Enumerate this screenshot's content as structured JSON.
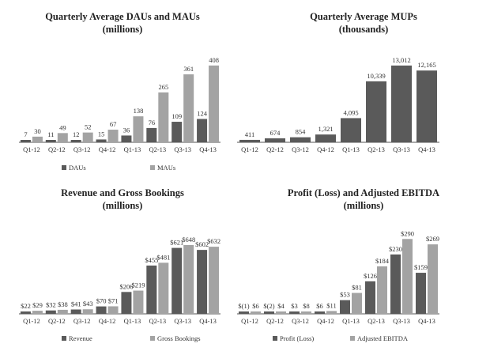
{
  "chart_data": [
    {
      "type": "bar",
      "title": "Quarterly Average DAUs and MAUs",
      "subtitle": "(millions)",
      "categories": [
        "Q1-12",
        "Q2-12",
        "Q3-12",
        "Q4-12",
        "Q1-13",
        "Q2-13",
        "Q3-13",
        "Q4-13"
      ],
      "series": [
        {
          "name": "DAUs",
          "values": [
            7,
            11,
            12,
            15,
            36,
            76,
            109,
            124
          ],
          "labels": [
            "7",
            "11",
            "12",
            "15",
            "36",
            "76",
            "109",
            "124"
          ],
          "color": "#5a5a5a"
        },
        {
          "name": "MAUs",
          "values": [
            30,
            49,
            52,
            67,
            138,
            265,
            361,
            408
          ],
          "labels": [
            "30",
            "49",
            "52",
            "67",
            "138",
            "265",
            "361",
            "408"
          ],
          "color": "#a3a3a3"
        }
      ],
      "ylim": [
        0,
        420
      ],
      "legend": "bottom"
    },
    {
      "type": "bar",
      "title": "Quarterly Average MUPs",
      "subtitle": "(thousands)",
      "categories": [
        "Q1-12",
        "Q2-12",
        "Q3-12",
        "Q4-12",
        "Q1-13",
        "Q2-13",
        "Q3-13",
        "Q4-13"
      ],
      "series": [
        {
          "name": "",
          "values": [
            411,
            674,
            854,
            1321,
            4095,
            10339,
            13012,
            12165
          ],
          "labels": [
            "411",
            "674",
            "854",
            "1,321",
            "4,095",
            "10,339",
            "13,012",
            "12,165"
          ],
          "color": "#5a5a5a"
        }
      ],
      "ylim": [
        0,
        13400
      ],
      "legend": "none"
    },
    {
      "type": "bar",
      "title": "Revenue and Gross Bookings",
      "subtitle": "(millions)",
      "categories": [
        "Q1-12",
        "Q2-12",
        "Q3-12",
        "Q4-12",
        "Q1-13",
        "Q2-13",
        "Q3-13",
        "Q4-13"
      ],
      "series": [
        {
          "name": "Revenue",
          "values": [
            22,
            32,
            41,
            70,
            206,
            455,
            621,
            602
          ],
          "labels": [
            "$22",
            "$32",
            "$41",
            "$70",
            "$206",
            "$455",
            "$621",
            "$602"
          ],
          "color": "#5a5a5a"
        },
        {
          "name": "Gross Bookings",
          "values": [
            29,
            38,
            43,
            71,
            219,
            481,
            648,
            632
          ],
          "labels": [
            "$29",
            "$38",
            "$43",
            "$71",
            "$219",
            "$481",
            "$648",
            "$632"
          ],
          "color": "#a3a3a3"
        }
      ],
      "ylim": [
        0,
        670
      ],
      "legend": "bottom"
    },
    {
      "type": "bar",
      "title": "Profit (Loss) and Adjusted EBITDA",
      "subtitle": "(millions)",
      "categories": [
        "Q1-12",
        "Q2-12",
        "Q3-12",
        "Q4-12",
        "Q1-13",
        "Q2-13",
        "Q3-13",
        "Q4-13"
      ],
      "series": [
        {
          "name": "Profit (Loss)",
          "values": [
            -1,
            -2,
            3,
            6,
            53,
            126,
            230,
            159
          ],
          "labels": [
            "$(1)",
            "$(2)",
            "$3",
            "$6",
            "$53",
            "$126",
            "$230",
            "$159"
          ],
          "color": "#5a5a5a"
        },
        {
          "name": "Adjusted EBITDA",
          "values": [
            6,
            4,
            8,
            11,
            81,
            184,
            290,
            269
          ],
          "labels": [
            "$6",
            "$4",
            "$8",
            "$11",
            "$81",
            "$184",
            "$290",
            "$269"
          ],
          "color": "#a3a3a3"
        }
      ],
      "ylim": [
        0,
        300
      ],
      "legend": "bottom"
    }
  ]
}
